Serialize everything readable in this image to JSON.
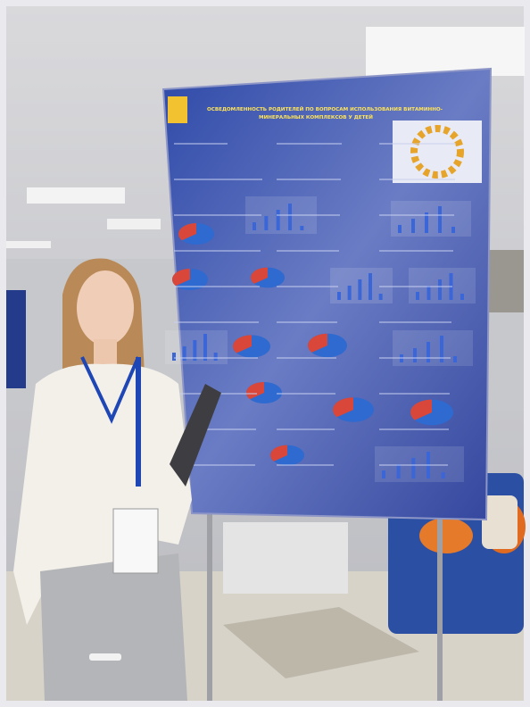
{
  "poster": {
    "title_lines": [
      "ОСВЕДОМЛЕННОСТЬ РОДИТЕЛЕЙ ПО ВОПРОСАМ ИСПОЛЬЗОВАНИЯ ВИТАМИННО-",
      "МИНЕРАЛЬНЫХ КОМПЛЕКСОВ У ДЕТЕЙ"
    ]
  }
}
